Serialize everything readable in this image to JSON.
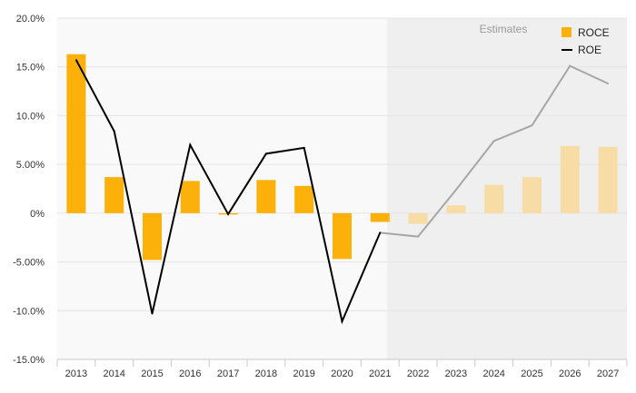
{
  "chart_data": {
    "type": "bar",
    "title": "",
    "xlabel": "",
    "ylabel": "",
    "categories": [
      "2013",
      "2014",
      "2015",
      "2016",
      "2017",
      "2018",
      "2019",
      "2020",
      "2021",
      "2022",
      "2023",
      "2024",
      "2025",
      "2026",
      "2027"
    ],
    "ylim": [
      -15,
      20
    ],
    "yticks": [
      {
        "value": 20,
        "label": "20.0%"
      },
      {
        "value": 15,
        "label": "15.0%"
      },
      {
        "value": 10,
        "label": "10.0%"
      },
      {
        "value": 5,
        "label": "5.00%"
      },
      {
        "value": 0,
        "label": "0%"
      },
      {
        "value": -5,
        "label": "-5.00%"
      },
      {
        "value": -10,
        "label": "-10.0%"
      },
      {
        "value": -15,
        "label": "-15.0%"
      }
    ],
    "grid": true,
    "legend_position": "top-right",
    "estimate_start_index": 9,
    "estimates_label": "Estimates",
    "series": [
      {
        "name": "ROCE",
        "kind": "bar",
        "values": [
          16.3,
          3.7,
          -4.8,
          3.3,
          -0.1,
          3.4,
          2.8,
          -4.7,
          -0.9,
          -1.1,
          0.8,
          2.9,
          3.7,
          6.9,
          6.8
        ]
      },
      {
        "name": "ROE",
        "kind": "line",
        "values": [
          15.7,
          8.4,
          -10.3,
          7.0,
          -0.1,
          6.1,
          6.7,
          -11.1,
          -2.0,
          -2.4,
          2.4,
          7.4,
          9.0,
          15.1,
          13.3
        ]
      }
    ],
    "colors": {
      "bar": "#FBB00A",
      "bar_estimate": "#F7DCA5",
      "line": "#000000",
      "line_estimate": "#A6A6A6",
      "estimate_band": "#EFEFEF",
      "plot_bg": "#F9F9F9",
      "grid": "#E4E4E4"
    }
  }
}
